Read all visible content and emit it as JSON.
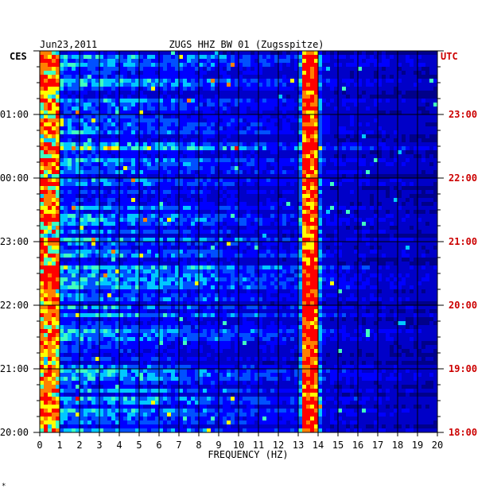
{
  "header": {
    "date": "Jun23,2011",
    "station": "ZUGS HHZ BW 01 (Zugsspitze)"
  },
  "left_axis": {
    "label": "CES",
    "color": "#000000"
  },
  "right_axis": {
    "label": "UTC",
    "color": "#cc0000"
  },
  "footer_mark": "*",
  "colors": {
    "background": "#00008a",
    "grid": "#000000",
    "signal_low": "#0000ff",
    "signal_mid": "#00c8ff",
    "signal_high": "#ffff00",
    "signal_peak": "#ff0000"
  },
  "chart_data": {
    "type": "heatmap",
    "title": "ZUGS HHZ BW 01 (Zugsspitze)",
    "date": "Jun23,2011",
    "xlabel": "FREQUENCY (HZ)",
    "x_ticks": [
      "0",
      "1",
      "2",
      "3",
      "4",
      "5",
      "6",
      "7",
      "8",
      "9",
      "10",
      "11",
      "12",
      "13",
      "14",
      "15",
      "16",
      "17",
      "18",
      "19",
      "20"
    ],
    "xlim": [
      0,
      20
    ],
    "left_time_ticks": [
      "01:00",
      "00:00",
      "23:00",
      "22:00",
      "21:00",
      "20:00"
    ],
    "right_time_ticks": [
      "23:00",
      "22:00",
      "21:00",
      "20:00",
      "19:00",
      "18:00"
    ],
    "time_span_hours": 6,
    "rows": 96,
    "dominant_line_hz": 13.6,
    "low_frequency_band_hz": [
      0,
      1
    ],
    "grid": true
  }
}
